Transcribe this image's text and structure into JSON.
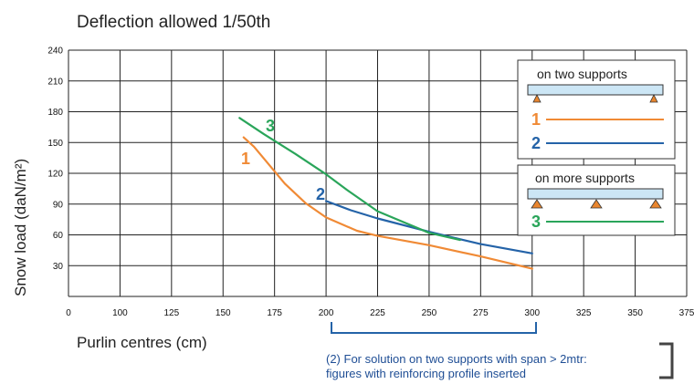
{
  "chart_data": {
    "type": "line",
    "title": "Deflection allowed 1/50th",
    "xlabel": "Purlin centres (cm)",
    "ylabel": "Snow load  (daN/m²)",
    "xlim": [
      75,
      375
    ],
    "ylim": [
      0,
      240
    ],
    "x_ticks": [
      "0",
      "100",
      "125",
      "150",
      "175",
      "200",
      "225",
      "250",
      "275",
      "300",
      "325",
      "350",
      "375"
    ],
    "y_ticks": [
      "240",
      "210",
      "180",
      "150",
      "120",
      "90",
      "60",
      "30"
    ],
    "grid": true,
    "series": [
      {
        "name": "1",
        "color": "#f08a35",
        "points": [
          [
            160,
            155
          ],
          [
            165,
            146
          ],
          [
            170,
            134
          ],
          [
            180,
            110
          ],
          [
            190,
            91
          ],
          [
            200,
            77
          ],
          [
            215,
            64
          ],
          [
            225,
            59
          ],
          [
            250,
            50
          ],
          [
            275,
            39
          ],
          [
            300,
            27
          ]
        ]
      },
      {
        "name": "2",
        "color": "#2463a8",
        "points": [
          [
            200,
            93
          ],
          [
            212,
            84
          ],
          [
            225,
            76
          ],
          [
            250,
            63
          ],
          [
            275,
            51
          ],
          [
            300,
            42
          ]
        ]
      },
      {
        "name": "3",
        "color": "#2aa55a",
        "points": [
          [
            158,
            174
          ],
          [
            170,
            158
          ],
          [
            185,
            139
          ],
          [
            200,
            119
          ],
          [
            210,
            104
          ],
          [
            225,
            83
          ],
          [
            250,
            62
          ],
          [
            265,
            55
          ]
        ]
      }
    ]
  },
  "legend": {
    "two_supports_title": "on two supports",
    "more_supports_title": "on more supports",
    "item1": "1",
    "item2": "2",
    "item3": "3"
  },
  "note": {
    "line1": "(2) For solution on two supports with span > 2mtr:",
    "line2": "figures with reinforcing profile inserted"
  },
  "colors": {
    "orange": "#f08a35",
    "blue": "#2463a8",
    "green": "#2aa55a",
    "beam": "#cce6f5",
    "support": "#e8852e",
    "grid": "#222222"
  }
}
